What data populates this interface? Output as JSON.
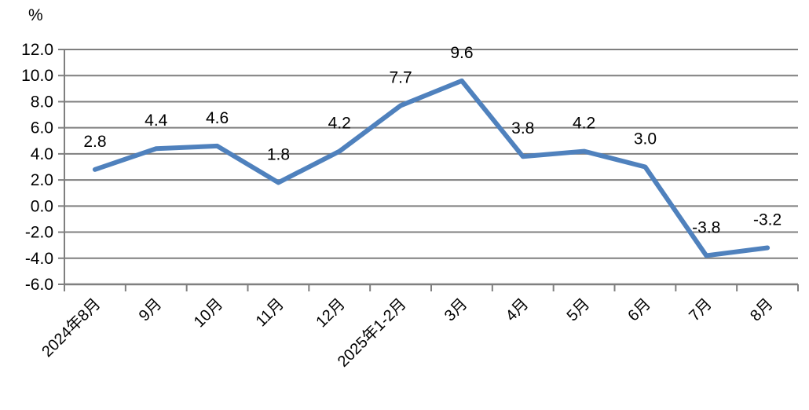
{
  "chart_data": {
    "type": "line",
    "title": "",
    "unit_label": "%",
    "categories": [
      "2024年8月",
      "9月",
      "10月",
      "11月",
      "12月",
      "2025年1-2月",
      "3月",
      "4月",
      "5月",
      "6月",
      "7月",
      "8月"
    ],
    "values": [
      2.8,
      4.4,
      4.6,
      1.8,
      4.2,
      7.7,
      9.6,
      3.8,
      4.2,
      3.0,
      -3.8,
      -3.2
    ],
    "data_labels": [
      "2.8",
      "4.4",
      "4.6",
      "1.8",
      "4.2",
      "7.7",
      "9.6",
      "3.8",
      "4.2",
      "3.0",
      "-3.8",
      "-3.2"
    ],
    "y_tick_labels": [
      "12.0",
      "10.0",
      "8.0",
      "6.0",
      "4.0",
      "2.0",
      "0.0",
      "-2.0",
      "-4.0",
      "-6.0"
    ],
    "ylim": [
      -6,
      12
    ],
    "y_tick_step": 2,
    "xlabel": "",
    "ylabel": "%",
    "grid": true,
    "legend_position": "none",
    "line_color": "#4F81BD",
    "gridline_color": "#7F7F7F",
    "axis_color": "#7F7F7F",
    "text_color": "#000000"
  }
}
